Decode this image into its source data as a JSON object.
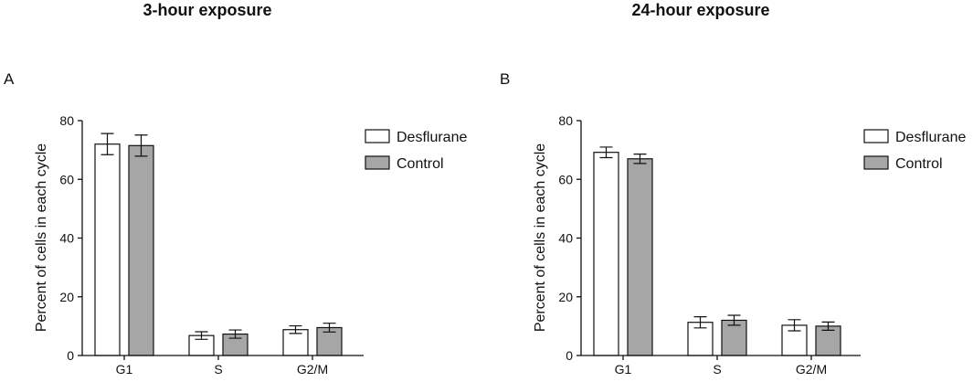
{
  "chart_data": [
    {
      "type": "bar",
      "panel_label": "A",
      "title": "3-hour exposure",
      "xlabel": "",
      "ylabel": "Percent of cells in each cycle",
      "ylim": [
        0,
        80
      ],
      "yticks": [
        0,
        20,
        40,
        60,
        80
      ],
      "categories": [
        "G1",
        "S",
        "G2/M"
      ],
      "legend": "top-right",
      "grid": false,
      "series": [
        {
          "name": "Desflurane",
          "color": "#ffffff",
          "values": [
            72,
            6.8,
            8.8
          ],
          "errors": [
            3.6,
            1.3,
            1.3
          ]
        },
        {
          "name": "Control",
          "color": "#a6a6a6",
          "values": [
            71.5,
            7.3,
            9.5
          ],
          "errors": [
            3.6,
            1.4,
            1.5
          ]
        }
      ]
    },
    {
      "type": "bar",
      "panel_label": "B",
      "title": "24-hour exposure",
      "xlabel": "",
      "ylabel": "Percent of cells in each cycle",
      "ylim": [
        0,
        80
      ],
      "yticks": [
        0,
        20,
        40,
        60,
        80
      ],
      "categories": [
        "G1",
        "S",
        "G2/M"
      ],
      "legend": "top-right",
      "grid": false,
      "series": [
        {
          "name": "Desflurane",
          "color": "#ffffff",
          "values": [
            69.2,
            11.3,
            10.3
          ],
          "errors": [
            1.8,
            1.9,
            1.9
          ]
        },
        {
          "name": "Control",
          "color": "#a6a6a6",
          "values": [
            67,
            12,
            10
          ],
          "errors": [
            1.6,
            1.7,
            1.4
          ]
        }
      ]
    }
  ]
}
